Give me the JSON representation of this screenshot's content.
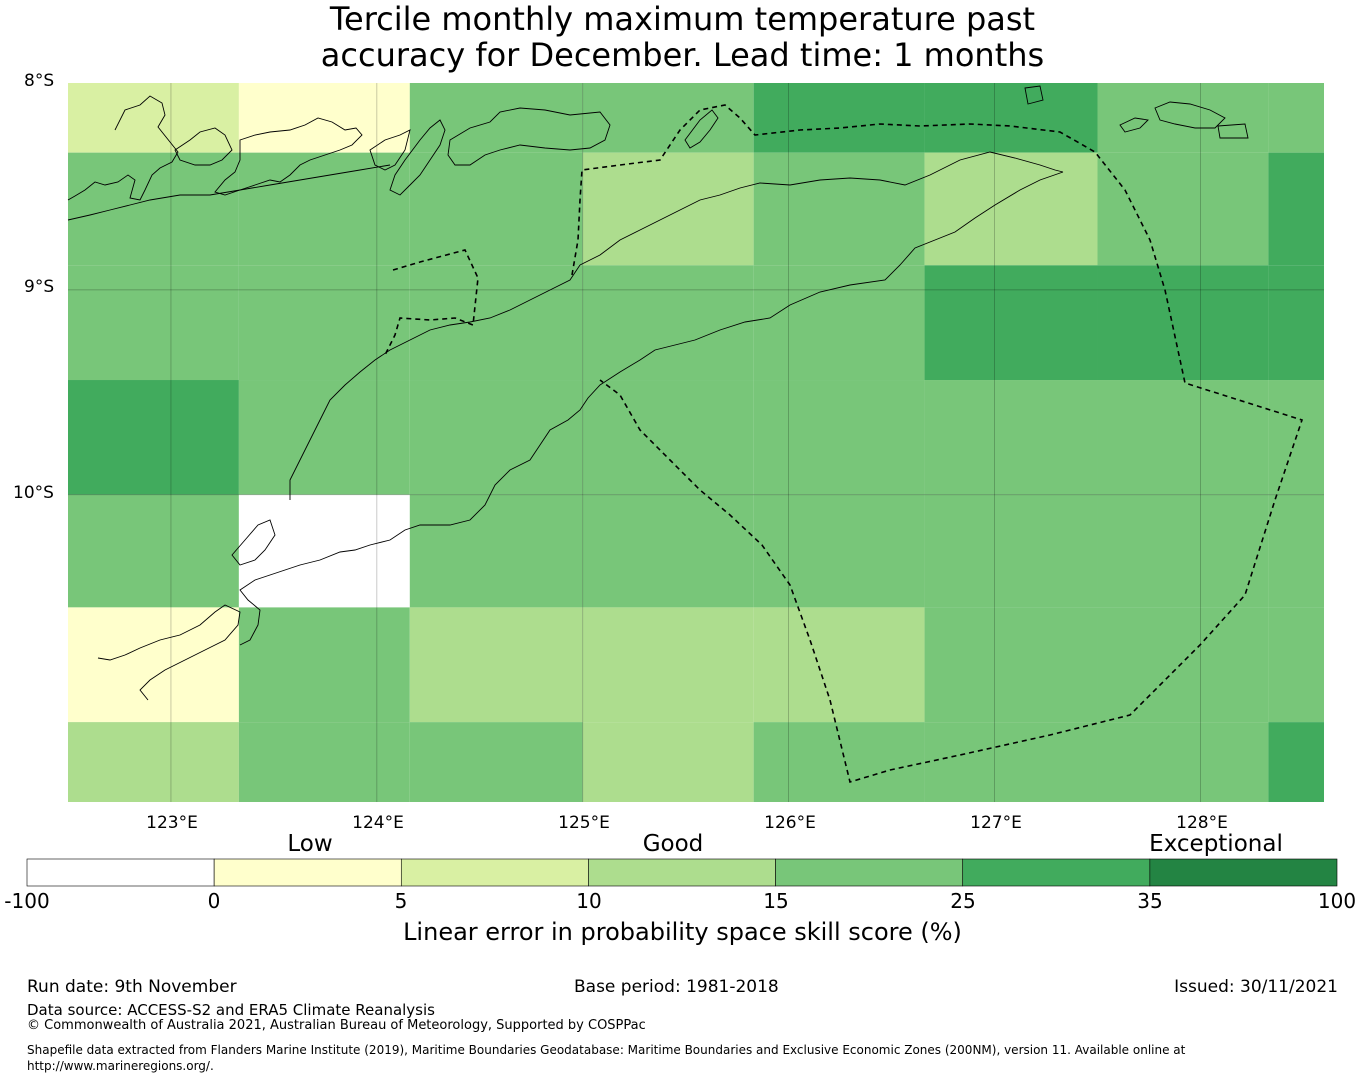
{
  "title_line1": "Tercile monthly maximum temperature past",
  "title_line2": "accuracy for December. Lead time: 1 months",
  "map": {
    "lat_labels": [
      "8°S",
      "9°S",
      "10°S"
    ],
    "lon_labels": [
      "123°E",
      "124°E",
      "125°E",
      "126°E",
      "127°E",
      "128°E"
    ],
    "extent": {
      "lon_min": 122.5,
      "lon_max": 128.6,
      "lat_max": -7.99,
      "lat_min": -11.5
    },
    "cell_size_deg": 0.833,
    "skill_grid_rows_north_to_south": [
      [
        7,
        2,
        20,
        20,
        30,
        30,
        20,
        20
      ],
      [
        20,
        20,
        20,
        12,
        20,
        12,
        20,
        30
      ],
      [
        20,
        20,
        20,
        20,
        20,
        30,
        30,
        30
      ],
      [
        30,
        20,
        20,
        20,
        20,
        20,
        20,
        20
      ],
      [
        20,
        -50,
        20,
        20,
        20,
        20,
        20,
        20
      ],
      [
        2,
        20,
        12,
        12,
        12,
        20,
        20,
        20
      ],
      [
        12,
        20,
        20,
        12,
        20,
        20,
        20,
        30
      ]
    ]
  },
  "colorbar": {
    "category_labels": [
      "Low",
      "Good",
      "Exceptional"
    ],
    "tick_labels": [
      "-100",
      "0",
      "5",
      "10",
      "15",
      "25",
      "35",
      "100"
    ],
    "colors": [
      "#ffffff",
      "#ffffcc",
      "#d9f0a3",
      "#addd8e",
      "#78c679",
      "#41ab5d",
      "#238443"
    ],
    "label": "Linear error in probability space skill score (%)"
  },
  "footer": {
    "run_date": "Run date: 9th November",
    "base_period": "Base period: 1981-2018",
    "issued": "Issued: 30/11/2021",
    "data_source": "Data source: ACCESS-S2 and ERA5 Climate Reanalysis",
    "copyright": "© Commonwealth of Australia 2021, Australian Bureau of Meteorology, Supported by COSPPac",
    "shapefile": "Shapefile data extracted from Flanders Marine Institute (2019), Maritime Boundaries Geodatabase: Maritime Boundaries and Exclusive Economic Zones (200NM), version 11. Available online at http://www.marineregions.org/."
  }
}
